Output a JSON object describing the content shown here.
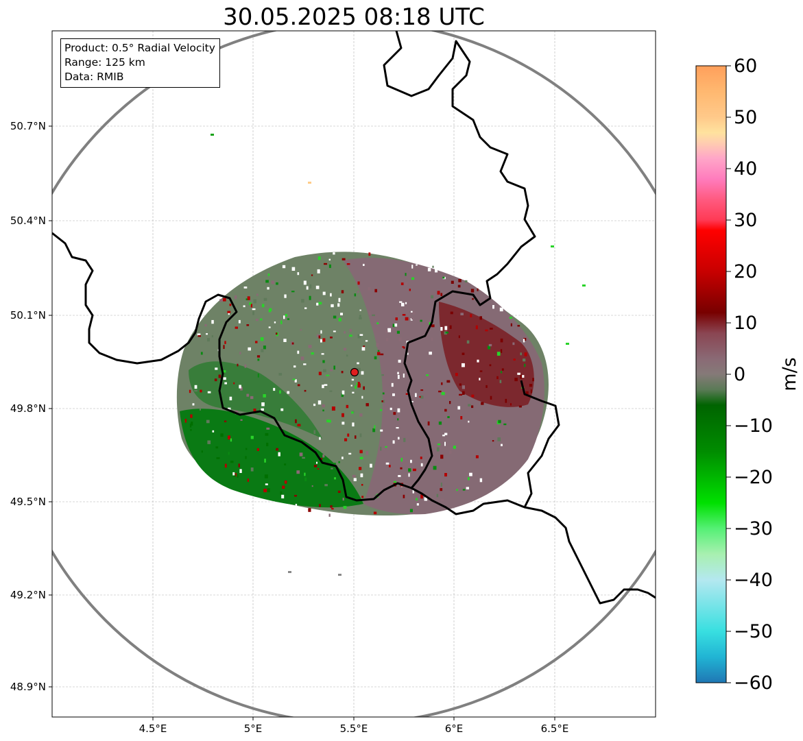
{
  "title": "30.05.2025 08:18 UTC",
  "info": {
    "product": "Product: 0.5° Radial Velocity",
    "range": "Range: 125 km",
    "data": "Data: RMIB"
  },
  "map": {
    "x_ticks": [
      "4.5°E",
      "5°E",
      "5.5°E",
      "6°E",
      "6.5°E"
    ],
    "y_ticks": [
      "50.7°N",
      "50.4°N",
      "50.1°N",
      "49.8°N",
      "49.5°N",
      "49.2°N",
      "48.9°N"
    ],
    "radar_site": {
      "lon": 5.5,
      "lat": 49.91
    },
    "range_ring_color": "#808080",
    "border_color": "#000000"
  },
  "colorbar": {
    "unit": "m/s",
    "tick_labels": [
      "60",
      "50",
      "40",
      "30",
      "20",
      "10",
      "0",
      "−10",
      "−20",
      "−30",
      "−40",
      "−50",
      "−60"
    ],
    "stops": [
      {
        "v": 60,
        "c": "#ff9f5b"
      },
      {
        "v": 55,
        "c": "#ffb870"
      },
      {
        "v": 50,
        "c": "#ffc98a"
      },
      {
        "v": 47,
        "c": "#ffe29e"
      },
      {
        "v": 45,
        "c": "#ffcdb0"
      },
      {
        "v": 42,
        "c": "#ffa6c8"
      },
      {
        "v": 38,
        "c": "#ff7cbd"
      },
      {
        "v": 34,
        "c": "#ff5a80"
      },
      {
        "v": 30,
        "c": "#ff3a55"
      },
      {
        "v": 28,
        "c": "#ff0000"
      },
      {
        "v": 20,
        "c": "#c80000"
      },
      {
        "v": 12,
        "c": "#780000"
      },
      {
        "v": 8,
        "c": "#8a4552"
      },
      {
        "v": 3,
        "c": "#8a6a75"
      },
      {
        "v": 0,
        "c": "#857a78"
      },
      {
        "v": -3,
        "c": "#5a7a56"
      },
      {
        "v": -6,
        "c": "#006400"
      },
      {
        "v": -15,
        "c": "#008c00"
      },
      {
        "v": -25,
        "c": "#00e000"
      },
      {
        "v": -30,
        "c": "#55f075"
      },
      {
        "v": -35,
        "c": "#a8f0b0"
      },
      {
        "v": -40,
        "c": "#b4e8f0"
      },
      {
        "v": -50,
        "c": "#38dfe0"
      },
      {
        "v": -55,
        "c": "#21b4d4"
      },
      {
        "v": -60,
        "c": "#1f77b4"
      }
    ],
    "range": [
      -60,
      60
    ]
  }
}
